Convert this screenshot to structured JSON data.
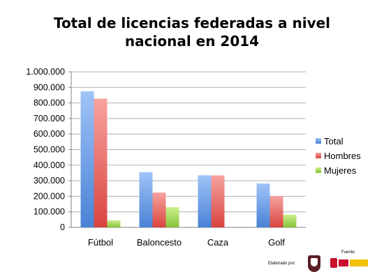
{
  "chart_data": {
    "type": "bar",
    "title_line1": "Total de licencias federadas a nivel",
    "title_line2": "nacional en 2014",
    "categories": [
      "Fútbol",
      "Baloncesto",
      "Caza",
      "Golf"
    ],
    "series": [
      {
        "name": "Total",
        "values": [
          875000,
          355000,
          335000,
          282000
        ],
        "color_top": "#9fc3f7",
        "color_bottom": "#4a82d6"
      },
      {
        "name": "Hombres",
        "values": [
          828000,
          224000,
          334000,
          201000
        ],
        "color_top": "#f7a3a0",
        "color_bottom": "#d9443f"
      },
      {
        "name": "Mujeres",
        "values": [
          46000,
          130000,
          0,
          82000
        ],
        "color_top": "#cdef8e",
        "color_bottom": "#86c23a"
      }
    ],
    "ylim": [
      0,
      1000000
    ],
    "yticks": [
      0,
      100000,
      200000,
      300000,
      400000,
      500000,
      600000,
      700000,
      800000,
      900000,
      1000000
    ],
    "ytick_labels": [
      "0",
      "100.000",
      "200.000",
      "300.000",
      "400.000",
      "500.000",
      "600.000",
      "700.000",
      "800.000",
      "900.000",
      "1.000.000"
    ],
    "grid": true,
    "legend_position": "right"
  },
  "footer": {
    "elaborado_label": "Elaborado por:",
    "fuente_label": "Fuente:"
  }
}
